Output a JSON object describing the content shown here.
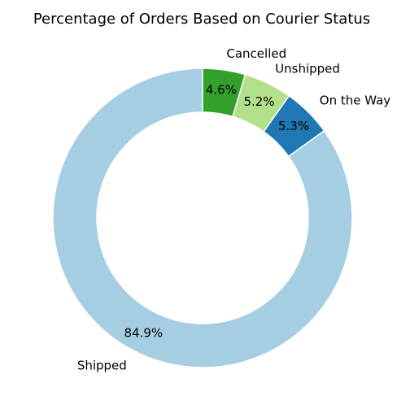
{
  "chart_data": {
    "type": "pie",
    "title": "Percentage of Orders Based on Courier Status",
    "donut": true,
    "start": "top",
    "direction": "counterclockwise",
    "slices": [
      {
        "label": "Shipped",
        "value": 84.9,
        "value_label": "84.9%",
        "color": "#a6cee3"
      },
      {
        "label": "On the Way",
        "value": 5.3,
        "value_label": "5.3%",
        "color": "#1f78b4"
      },
      {
        "label": "Unshipped",
        "value": 5.2,
        "value_label": "5.2%",
        "color": "#b2df8a"
      },
      {
        "label": "Cancelled",
        "value": 4.6,
        "value_label": "4.6%",
        "color": "#33a02c"
      }
    ]
  }
}
